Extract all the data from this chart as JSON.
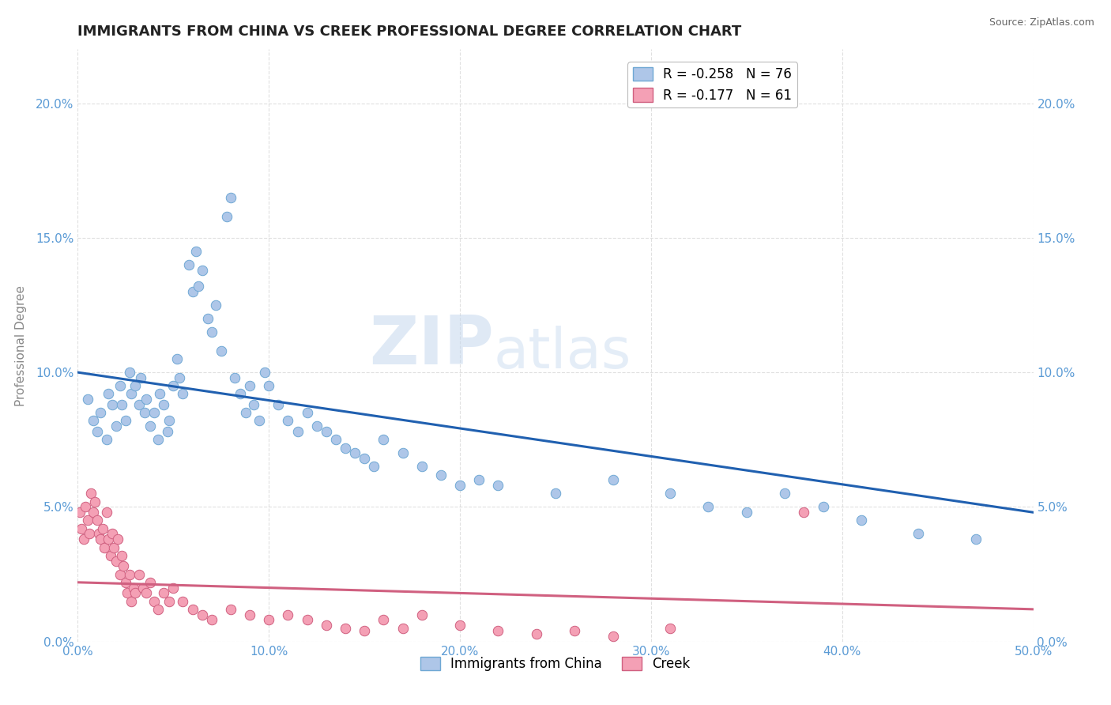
{
  "title": "IMMIGRANTS FROM CHINA VS CREEK PROFESSIONAL DEGREE CORRELATION CHART",
  "source": "Source: ZipAtlas.com",
  "xlabel": "",
  "ylabel": "Professional Degree",
  "xlim": [
    0.0,
    0.5
  ],
  "ylim": [
    0.0,
    0.22
  ],
  "xticks": [
    0.0,
    0.1,
    0.2,
    0.3,
    0.4,
    0.5
  ],
  "xticklabels": [
    "0.0%",
    "10.0%",
    "20.0%",
    "30.0%",
    "40.0%",
    "50.0%"
  ],
  "yticks": [
    0.0,
    0.05,
    0.1,
    0.15,
    0.2
  ],
  "yticklabels": [
    "0.0%",
    "5.0%",
    "10.0%",
    "15.0%",
    "20.0%"
  ],
  "series1_color": "#aec6e8",
  "series1_edge": "#6fa8d4",
  "series1_line": "#2060b0",
  "series2_color": "#f4a0b5",
  "series2_edge": "#d06080",
  "series2_line": "#d06080",
  "watermark_zip": "ZIP",
  "watermark_atlas": "atlas",
  "background_color": "#ffffff",
  "grid_color": "#cccccc",
  "title_color": "#222222",
  "axis_tick_color": "#5b9bd5",
  "ylabel_color": "#888888",
  "marker_size": 9,
  "series1_name": "Immigrants from China",
  "series2_name": "Creek",
  "legend1_label": "R = -0.258   N = 76",
  "legend2_label": "R = -0.177   N = 61",
  "series1_x": [
    0.005,
    0.008,
    0.01,
    0.012,
    0.015,
    0.016,
    0.018,
    0.02,
    0.022,
    0.023,
    0.025,
    0.027,
    0.028,
    0.03,
    0.032,
    0.033,
    0.035,
    0.036,
    0.038,
    0.04,
    0.042,
    0.043,
    0.045,
    0.047,
    0.048,
    0.05,
    0.052,
    0.053,
    0.055,
    0.058,
    0.06,
    0.062,
    0.063,
    0.065,
    0.068,
    0.07,
    0.072,
    0.075,
    0.078,
    0.08,
    0.082,
    0.085,
    0.088,
    0.09,
    0.092,
    0.095,
    0.098,
    0.1,
    0.105,
    0.11,
    0.115,
    0.12,
    0.125,
    0.13,
    0.135,
    0.14,
    0.145,
    0.15,
    0.155,
    0.16,
    0.17,
    0.18,
    0.19,
    0.2,
    0.21,
    0.22,
    0.25,
    0.28,
    0.31,
    0.33,
    0.35,
    0.37,
    0.39,
    0.41,
    0.44,
    0.47
  ],
  "series1_y": [
    0.09,
    0.082,
    0.078,
    0.085,
    0.075,
    0.092,
    0.088,
    0.08,
    0.095,
    0.088,
    0.082,
    0.1,
    0.092,
    0.095,
    0.088,
    0.098,
    0.085,
    0.09,
    0.08,
    0.085,
    0.075,
    0.092,
    0.088,
    0.078,
    0.082,
    0.095,
    0.105,
    0.098,
    0.092,
    0.14,
    0.13,
    0.145,
    0.132,
    0.138,
    0.12,
    0.115,
    0.125,
    0.108,
    0.158,
    0.165,
    0.098,
    0.092,
    0.085,
    0.095,
    0.088,
    0.082,
    0.1,
    0.095,
    0.088,
    0.082,
    0.078,
    0.085,
    0.08,
    0.078,
    0.075,
    0.072,
    0.07,
    0.068,
    0.065,
    0.075,
    0.07,
    0.065,
    0.062,
    0.058,
    0.06,
    0.058,
    0.055,
    0.06,
    0.055,
    0.05,
    0.048,
    0.055,
    0.05,
    0.045,
    0.04,
    0.038
  ],
  "series2_x": [
    0.001,
    0.002,
    0.003,
    0.004,
    0.005,
    0.006,
    0.007,
    0.008,
    0.009,
    0.01,
    0.011,
    0.012,
    0.013,
    0.014,
    0.015,
    0.016,
    0.017,
    0.018,
    0.019,
    0.02,
    0.021,
    0.022,
    0.023,
    0.024,
    0.025,
    0.026,
    0.027,
    0.028,
    0.029,
    0.03,
    0.032,
    0.034,
    0.036,
    0.038,
    0.04,
    0.042,
    0.045,
    0.048,
    0.05,
    0.055,
    0.06,
    0.065,
    0.07,
    0.08,
    0.09,
    0.1,
    0.11,
    0.12,
    0.13,
    0.14,
    0.15,
    0.16,
    0.17,
    0.18,
    0.2,
    0.22,
    0.24,
    0.26,
    0.28,
    0.31,
    0.38
  ],
  "series2_y": [
    0.048,
    0.042,
    0.038,
    0.05,
    0.045,
    0.04,
    0.055,
    0.048,
    0.052,
    0.045,
    0.04,
    0.038,
    0.042,
    0.035,
    0.048,
    0.038,
    0.032,
    0.04,
    0.035,
    0.03,
    0.038,
    0.025,
    0.032,
    0.028,
    0.022,
    0.018,
    0.025,
    0.015,
    0.02,
    0.018,
    0.025,
    0.02,
    0.018,
    0.022,
    0.015,
    0.012,
    0.018,
    0.015,
    0.02,
    0.015,
    0.012,
    0.01,
    0.008,
    0.012,
    0.01,
    0.008,
    0.01,
    0.008,
    0.006,
    0.005,
    0.004,
    0.008,
    0.005,
    0.01,
    0.006,
    0.004,
    0.003,
    0.004,
    0.002,
    0.005,
    0.048
  ],
  "trendline1_x0": 0.0,
  "trendline1_y0": 0.1,
  "trendline1_x1": 0.5,
  "trendline1_y1": 0.048,
  "trendline2_x0": 0.0,
  "trendline2_y0": 0.022,
  "trendline2_x1": 0.5,
  "trendline2_y1": 0.012
}
